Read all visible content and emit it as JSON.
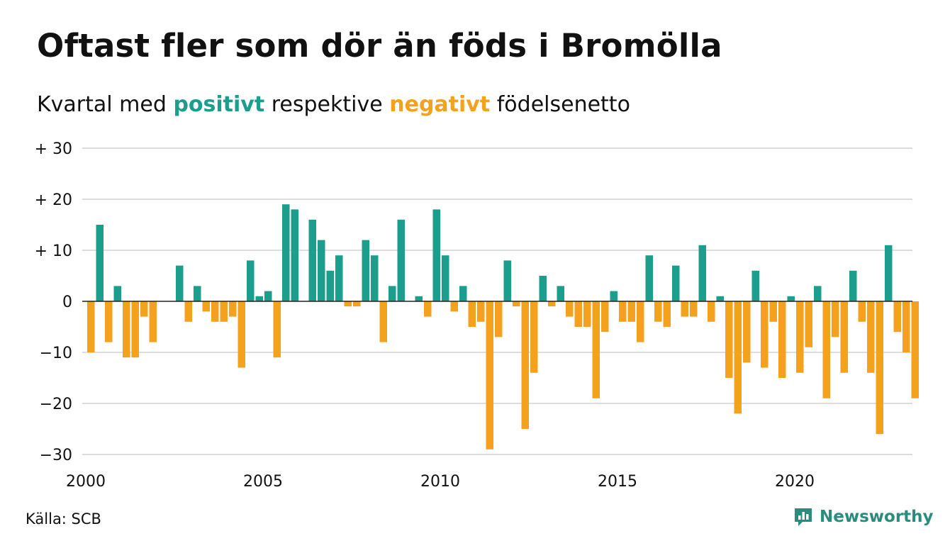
{
  "header": {
    "title": "Oftast fler som dör än föds i Bromölla",
    "subtitle_pre": "Kvartal med",
    "subtitle_positive": "positivt",
    "subtitle_mid": "respektive",
    "subtitle_negative": "negativt",
    "subtitle_post": "födelsenetto"
  },
  "footer": {
    "source": "Källa: SCB",
    "brand": "Newsworthy"
  },
  "colors": {
    "positive": "#1b9e8c",
    "negative": "#f4a11e",
    "grid": "#dddddd",
    "brand": "#2a8c7d"
  },
  "icons": {
    "brand_logo": "bar-chart-speech-icon"
  },
  "chart_data": {
    "type": "bar",
    "title": "Oftast fler som dör än föds i Bromölla",
    "subtitle": "Kvartal med positivt respektive negativt födelsenetto",
    "xlabel": "",
    "ylabel": "",
    "ylim": [
      -30,
      30
    ],
    "yticks": [
      30,
      20,
      10,
      0,
      -10,
      -20,
      -30
    ],
    "ytick_labels": [
      "+ 30",
      "+ 20",
      "+ 10",
      "0",
      "−10",
      "−20",
      "−30"
    ],
    "xtick_labels": [
      "2000",
      "2005",
      "2010",
      "2015",
      "2020"
    ],
    "x_start": "2000 K1",
    "x_end": "2023 K2",
    "grid": "horizontal",
    "values": [
      -10,
      15,
      -8,
      3,
      -11,
      -11,
      -3,
      -8,
      0,
      0,
      7,
      -4,
      3,
      -2,
      -4,
      -4,
      -3,
      -13,
      8,
      1,
      2,
      -11,
      19,
      18,
      0,
      16,
      12,
      6,
      9,
      -1,
      -1,
      12,
      9,
      -8,
      3,
      16,
      0,
      1,
      -3,
      18,
      9,
      -2,
      3,
      -5,
      -4,
      -29,
      -7,
      8,
      -1,
      -25,
      -14,
      5,
      -1,
      3,
      -3,
      -5,
      -5,
      -19,
      -6,
      2,
      -4,
      -4,
      -8,
      9,
      -4,
      -5,
      7,
      -3,
      -3,
      11,
      -4,
      1,
      -15,
      -22,
      -12,
      6,
      -13,
      -4,
      -15,
      1,
      -14,
      -9,
      3,
      -19,
      -7,
      -14,
      6,
      -4,
      -14,
      -26,
      11,
      -6,
      -10,
      -19
    ]
  }
}
